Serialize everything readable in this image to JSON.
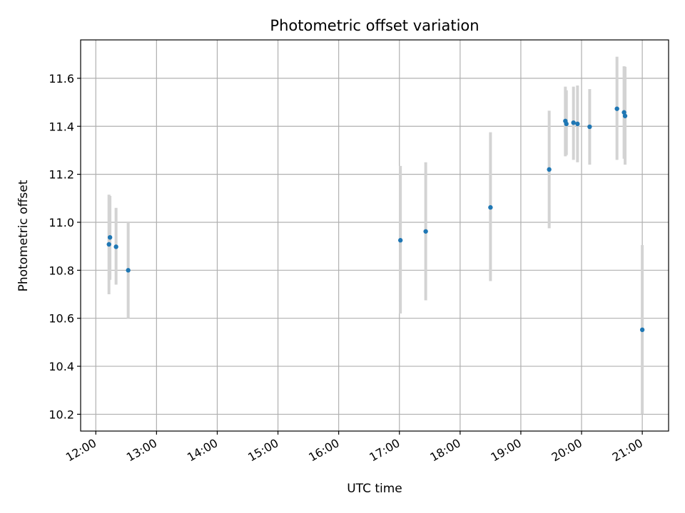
{
  "chart_data": {
    "type": "scatter",
    "title": "Photometric offset variation",
    "xlabel": "UTC time",
    "ylabel": "Photometric offset",
    "x_ticks": [
      "12:00",
      "13:00",
      "14:00",
      "15:00",
      "16:00",
      "17:00",
      "18:00",
      "19:00",
      "20:00",
      "21:00"
    ],
    "y_ticks": [
      "10.2",
      "10.4",
      "10.6",
      "10.8",
      "11.0",
      "11.2",
      "11.4",
      "11.6"
    ],
    "xlim": [
      "11:45",
      "21:26"
    ],
    "ylim": [
      10.13,
      11.76
    ],
    "grid": true,
    "colors": {
      "point": "#1f77b4",
      "errorbar": "#d3d3d3",
      "grid": "#b0b0b0"
    },
    "points": [
      {
        "x": "12:13",
        "y": 10.908,
        "ymin": 10.7,
        "ymax": 11.115
      },
      {
        "x": "12:14",
        "y": 10.937,
        "ymin": 10.76,
        "ymax": 11.11
      },
      {
        "x": "12:20",
        "y": 10.898,
        "ymin": 10.74,
        "ymax": 11.06
      },
      {
        "x": "12:32",
        "y": 10.8,
        "ymin": 10.6,
        "ymax": 11.0
      },
      {
        "x": "17:01",
        "y": 10.925,
        "ymin": 10.62,
        "ymax": 11.235
      },
      {
        "x": "17:26",
        "y": 10.962,
        "ymin": 10.675,
        "ymax": 11.25
      },
      {
        "x": "18:30",
        "y": 11.062,
        "ymin": 10.755,
        "ymax": 11.375
      },
      {
        "x": "19:28",
        "y": 11.22,
        "ymin": 10.975,
        "ymax": 11.465
      },
      {
        "x": "19:44",
        "y": 11.422,
        "ymin": 11.275,
        "ymax": 11.565
      },
      {
        "x": "19:45",
        "y": 11.41,
        "ymin": 11.28,
        "ymax": 11.55
      },
      {
        "x": "19:52",
        "y": 11.415,
        "ymin": 11.26,
        "ymax": 11.565
      },
      {
        "x": "19:56",
        "y": 11.41,
        "ymin": 11.25,
        "ymax": 11.57
      },
      {
        "x": "20:08",
        "y": 11.398,
        "ymin": 11.24,
        "ymax": 11.555
      },
      {
        "x": "20:35",
        "y": 11.473,
        "ymin": 11.26,
        "ymax": 11.69
      },
      {
        "x": "20:42",
        "y": 11.458,
        "ymin": 11.265,
        "ymax": 11.65
      },
      {
        "x": "20:43",
        "y": 11.443,
        "ymin": 11.24,
        "ymax": 11.648
      },
      {
        "x": "21:00",
        "y": 10.552,
        "ymin": 10.2,
        "ymax": 10.905
      }
    ]
  }
}
